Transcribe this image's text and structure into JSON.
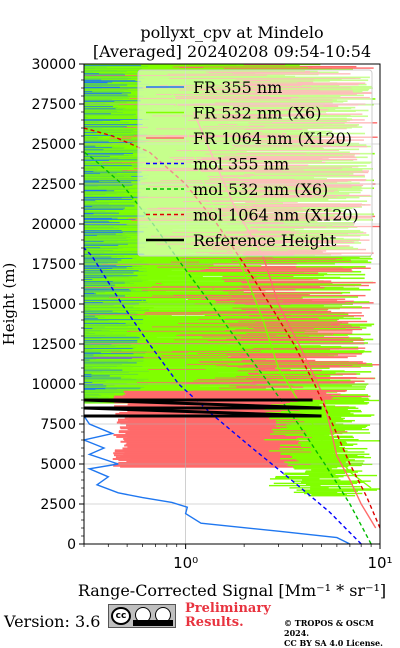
{
  "chart_data": {
    "type": "line",
    "title": "pollyxt_cpv at Mindelo",
    "subtitle": "[Averaged] 20240208 09:54-10:54",
    "xlabel": "Range-Corrected Signal [Mm⁻¹ * sr⁻¹]",
    "ylabel": "Height (m)",
    "xscale": "log",
    "xlim": [
      0.3,
      10
    ],
    "ylim": [
      0,
      30000
    ],
    "xticks": [
      {
        "value": 1,
        "label": "10⁰"
      },
      {
        "value": 10,
        "label": "10¹"
      }
    ],
    "yticks": [
      0,
      2500,
      5000,
      7500,
      10000,
      12500,
      15000,
      17500,
      20000,
      22500,
      25000,
      27500,
      30000
    ],
    "grid": true,
    "legend_position": "top-right",
    "colors": {
      "fr355": "#1f77f0",
      "fr532": "#80ff00",
      "fr1064": "#ff6b6b",
      "mol355": "#0000ff",
      "mol532": "#00bb00",
      "mol1064": "#dd0000",
      "ref": "#000000"
    },
    "series": [
      {
        "name": "FR 355 nm",
        "key": "fr355",
        "style": "solid",
        "points": [
          [
            7,
            0
          ],
          [
            6,
            400
          ],
          [
            3,
            800
          ],
          [
            1.2,
            1300
          ],
          [
            1.0,
            1900
          ],
          [
            1.02,
            2300
          ],
          [
            0.85,
            2600
          ],
          [
            0.6,
            2900
          ],
          [
            0.45,
            3200
          ],
          [
            0.35,
            3700
          ],
          [
            0.4,
            4200
          ],
          [
            0.32,
            4700
          ],
          [
            0.45,
            5000
          ],
          [
            0.32,
            5600
          ],
          [
            0.38,
            6000
          ],
          [
            0.3,
            6500
          ],
          [
            0.42,
            6900
          ],
          [
            0.32,
            7500
          ],
          [
            0.3,
            8000
          ]
        ]
      },
      {
        "name": "FR 532 nm (X6)",
        "key": "fr532",
        "style": "solid",
        "points": [
          [
            9,
            3500
          ],
          [
            7,
            4500
          ],
          [
            6,
            5500
          ],
          [
            5,
            6500
          ],
          [
            4.5,
            7500
          ],
          [
            4,
            8500
          ],
          [
            3,
            11000
          ],
          [
            2.5,
            14000
          ],
          [
            2,
            17000
          ],
          [
            1.5,
            20000
          ],
          [
            1.2,
            23000
          ],
          [
            1,
            26000
          ],
          [
            0.8,
            29000
          ]
        ]
      },
      {
        "name": "FR 1064 nm (X120)",
        "key": "fr1064",
        "style": "solid",
        "points": [
          [
            9.5,
            1000
          ],
          [
            8,
            2500
          ],
          [
            7,
            4000
          ],
          [
            6,
            5500
          ],
          [
            5.5,
            7500
          ],
          [
            5,
            9500
          ],
          [
            4,
            12000
          ],
          [
            3,
            15000
          ],
          [
            2.5,
            18000
          ],
          [
            1.8,
            21000
          ],
          [
            1.4,
            24000
          ],
          [
            1.1,
            27000
          ]
        ]
      },
      {
        "name": "mol 355 nm",
        "key": "mol355",
        "style": "dashed",
        "points": [
          [
            8,
            0
          ],
          [
            5.5,
            2000
          ],
          [
            3.5,
            4000
          ],
          [
            2.2,
            6000
          ],
          [
            1.4,
            8000
          ],
          [
            0.92,
            10000
          ],
          [
            0.65,
            12500
          ],
          [
            0.47,
            15000
          ],
          [
            0.33,
            18000
          ],
          [
            0.3,
            18500
          ]
        ]
      },
      {
        "name": "mol 532 nm (X6)",
        "key": "mol532",
        "style": "dashed",
        "points": [
          [
            9,
            0
          ],
          [
            7,
            2500
          ],
          [
            5.2,
            5000
          ],
          [
            3.8,
            7500
          ],
          [
            2.7,
            10000
          ],
          [
            1.9,
            12500
          ],
          [
            1.35,
            15000
          ],
          [
            0.95,
            17500
          ],
          [
            0.68,
            20000
          ],
          [
            0.47,
            22500
          ],
          [
            0.34,
            24000
          ],
          [
            0.3,
            24500
          ]
        ]
      },
      {
        "name": "mol 1064 nm (X120)",
        "key": "mol1064",
        "style": "dashed",
        "points": [
          [
            10,
            1000
          ],
          [
            8.5,
            3000
          ],
          [
            7,
            5000
          ],
          [
            5.7,
            7500
          ],
          [
            4.6,
            10000
          ],
          [
            3.6,
            12500
          ],
          [
            2.7,
            15000
          ],
          [
            2.0,
            17500
          ],
          [
            1.45,
            20000
          ],
          [
            1.0,
            22500
          ],
          [
            0.65,
            24500
          ],
          [
            0.42,
            25500
          ],
          [
            0.3,
            26000
          ]
        ]
      },
      {
        "name": "Reference Height",
        "key": "ref",
        "style": "solid",
        "points": [
          [
            0.3,
            8000
          ],
          [
            5,
            8000
          ],
          [
            0.3,
            8500
          ],
          [
            5,
            8500
          ],
          [
            0.3,
            9000
          ],
          [
            4.5,
            9000
          ]
        ]
      }
    ]
  },
  "footer": {
    "version": "Version: 3.6",
    "license_badge": "CC BY SA",
    "preliminary": [
      "Preliminary",
      "Results."
    ],
    "copyright": [
      "© TROPOS & OSCM 2024.",
      "CC BY SA 4.0 License."
    ]
  }
}
